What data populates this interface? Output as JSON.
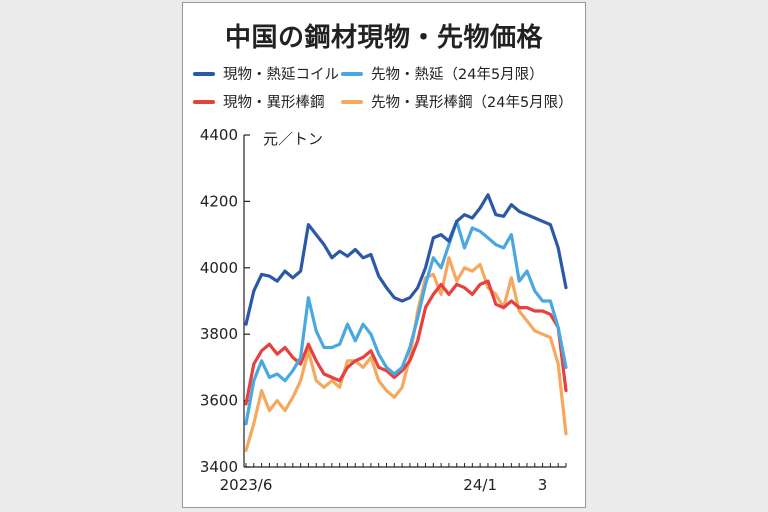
{
  "chart_data": {
    "type": "line",
    "title": "中国の鋼材現物・先物価格",
    "ylabel": "元／トン",
    "ylim": [
      3400,
      4400
    ],
    "yticks": [
      4400,
      4200,
      4000,
      3800,
      3600,
      3400
    ],
    "xticks": [
      {
        "label": "2023/6",
        "index": 0
      },
      {
        "label": "24/1",
        "index": 30
      },
      {
        "label": "3",
        "index": 38
      }
    ],
    "grid": false,
    "legend_position": "top",
    "series": [
      {
        "name": "現物・熱延コイル",
        "color": "#2b59a8",
        "values": [
          3830,
          3930,
          3980,
          3975,
          3960,
          3990,
          3970,
          3990,
          4130,
          4100,
          4070,
          4030,
          4050,
          4035,
          4055,
          4030,
          4040,
          3975,
          3940,
          3910,
          3900,
          3910,
          3940,
          4000,
          4090,
          4100,
          4080,
          4140,
          4160,
          4150,
          4180,
          4220,
          4160,
          4155,
          4190,
          4170,
          4160,
          4150,
          4140,
          4130,
          4060,
          3940
        ]
      },
      {
        "name": "先物・熱延（24年5月限）",
        "color": "#4aa8e0",
        "values": [
          3530,
          3660,
          3720,
          3670,
          3680,
          3660,
          3690,
          3730,
          3910,
          3810,
          3760,
          3760,
          3770,
          3830,
          3780,
          3830,
          3800,
          3740,
          3700,
          3680,
          3700,
          3760,
          3850,
          3950,
          4030,
          4000,
          4070,
          4140,
          4060,
          4120,
          4110,
          4090,
          4070,
          4060,
          4100,
          3960,
          3990,
          3930,
          3900,
          3900,
          3820,
          3700
        ]
      },
      {
        "name": "現物・異形棒鋼",
        "color": "#e8403e",
        "values": [
          3590,
          3710,
          3750,
          3770,
          3740,
          3760,
          3730,
          3710,
          3770,
          3720,
          3680,
          3670,
          3660,
          3700,
          3720,
          3730,
          3750,
          3700,
          3690,
          3670,
          3690,
          3720,
          3780,
          3880,
          3920,
          3950,
          3920,
          3950,
          3940,
          3920,
          3950,
          3960,
          3890,
          3880,
          3900,
          3880,
          3880,
          3870,
          3870,
          3860,
          3820,
          3630
        ]
      },
      {
        "name": "先物・異形棒鋼（24年5月限）",
        "color": "#f5a85e",
        "values": [
          3450,
          3530,
          3630,
          3570,
          3600,
          3570,
          3610,
          3660,
          3750,
          3660,
          3640,
          3660,
          3640,
          3720,
          3720,
          3700,
          3730,
          3660,
          3630,
          3610,
          3640,
          3730,
          3870,
          3970,
          3980,
          3920,
          4030,
          3960,
          4000,
          3990,
          4010,
          3940,
          3920,
          3880,
          3970,
          3870,
          3840,
          3810,
          3800,
          3790,
          3710,
          3500
        ]
      }
    ]
  }
}
